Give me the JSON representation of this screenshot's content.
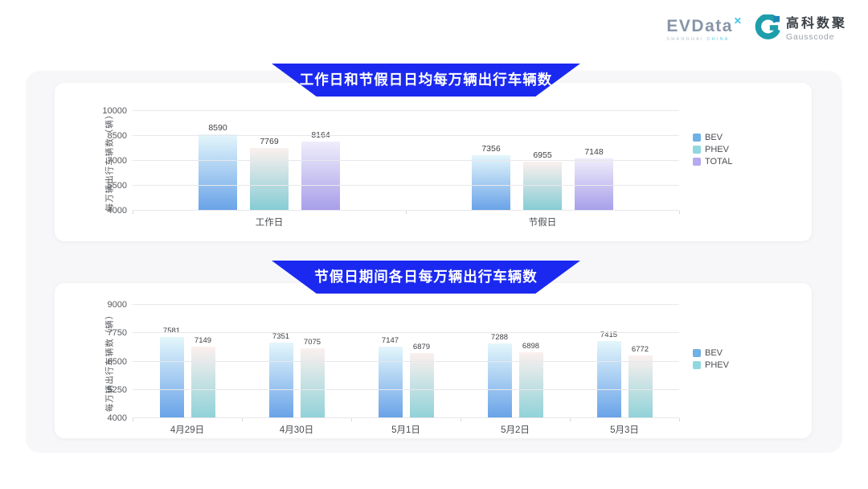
{
  "header": {
    "evdata": {
      "name": "EVData",
      "sup": "✕",
      "tagline_left": "SHANGHAI",
      "tagline_right": "CHINA"
    },
    "gausscode": {
      "cn": "高科数聚",
      "en": "Gausscode"
    }
  },
  "colors": {
    "banner_blue": "#1b29f0",
    "panel_gray": "#f7f7f9",
    "gausscode_teal": "#1e9eaa"
  },
  "chart_data": [
    {
      "type": "bar",
      "title": "工作日和节假日日均每万辆出行车辆数",
      "ylabel": "每万辆出行车辆数（辆）",
      "ylim": [
        4000,
        10000
      ],
      "yticks": [
        4000,
        5500,
        7000,
        8500,
        10000
      ],
      "categories": [
        "工作日",
        "节假日"
      ],
      "series": [
        {
          "name": "BEV",
          "values": [
            8590,
            7356
          ],
          "legend_color": "#6fb1e4",
          "gradient_top": "#e4f6fb",
          "gradient_bottom": "#68a2e8"
        },
        {
          "name": "PHEV",
          "values": [
            7769,
            6955
          ],
          "legend_color": "#90d8e0",
          "gradient_top": "#fbf0ee",
          "gradient_bottom": "#84ccd4"
        },
        {
          "name": "TOTAL",
          "values": [
            8164,
            7148
          ],
          "legend_color": "#b5a9ef",
          "gradient_top": "#efedfb",
          "gradient_bottom": "#a79ee9"
        }
      ],
      "legend_position": "right",
      "grid": "horizontal"
    },
    {
      "type": "bar",
      "title": "节假日期间各日每万辆出行车辆数",
      "ylabel": "每万辆出行车辆数（辆）",
      "ylim": [
        4000,
        9000
      ],
      "yticks": [
        4000,
        5250,
        6500,
        7750,
        9000
      ],
      "categories": [
        "4月29日",
        "4月30日",
        "5月1日",
        "5月2日",
        "5月3日"
      ],
      "series": [
        {
          "name": "BEV",
          "values": [
            7581,
            7351,
            7147,
            7288,
            7415
          ],
          "legend_color": "#6fb1e4",
          "gradient_top": "#e4f6fb",
          "gradient_bottom": "#68a2e8"
        },
        {
          "name": "PHEV",
          "values": [
            7149,
            7075,
            6879,
            6898,
            6772
          ],
          "legend_color": "#90d8e0",
          "gradient_top": "#fbf0ee",
          "gradient_bottom": "#8fd2d8"
        }
      ],
      "legend_position": "right",
      "grid": "horizontal"
    }
  ]
}
